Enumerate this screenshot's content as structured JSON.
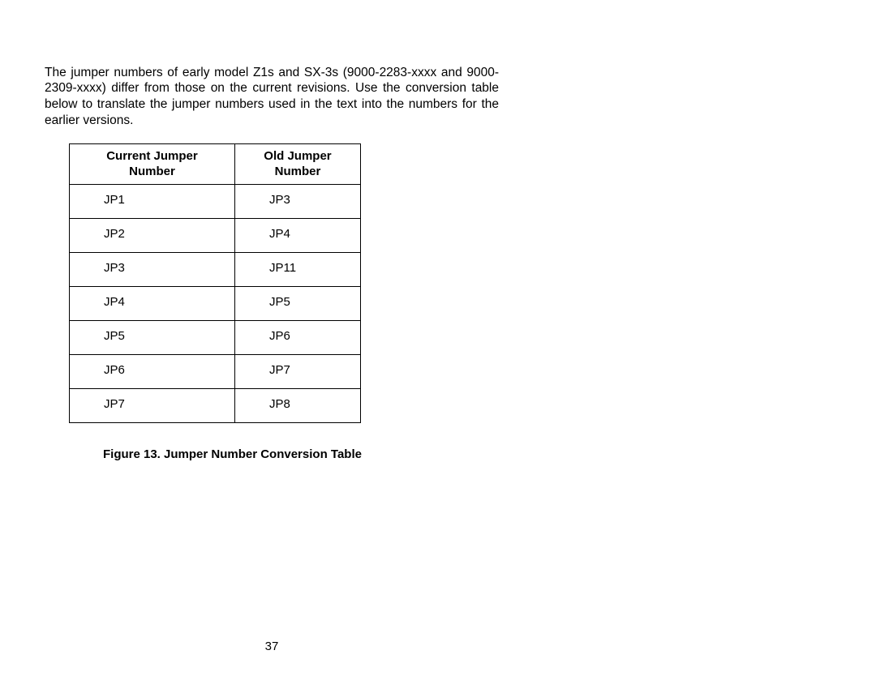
{
  "intro_text": "The jumper numbers of early model Z1s and SX-3s (9000-2283-xxxx and 9000-2309-xxxx) differ from those on the current revisions.  Use the conversion table below to translate the jumper numbers used in the text into the numbers for the earlier versions.",
  "table": {
    "header_current_line1": "Current Jumper",
    "header_current_line2": "Number",
    "header_old_line1": "Old Jumper",
    "header_old_line2": "Number",
    "rows": [
      {
        "current": "JP1",
        "old": "JP3"
      },
      {
        "current": "JP2",
        "old": "JP4"
      },
      {
        "current": "JP3",
        "old": "JP11"
      },
      {
        "current": "JP4",
        "old": "JP5"
      },
      {
        "current": "JP5",
        "old": "JP6"
      },
      {
        "current": "JP6",
        "old": "JP7"
      },
      {
        "current": "JP7",
        "old": "JP8"
      }
    ]
  },
  "caption": "Figure 13.  Jumper Number Conversion Table",
  "page_number": "37"
}
